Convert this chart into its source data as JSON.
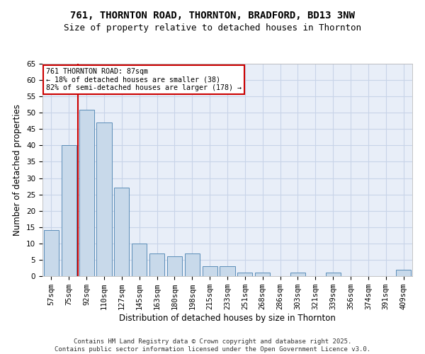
{
  "title1": "761, THORNTON ROAD, THORNTON, BRADFORD, BD13 3NW",
  "title2": "Size of property relative to detached houses in Thornton",
  "xlabel": "Distribution of detached houses by size in Thornton",
  "ylabel": "Number of detached properties",
  "categories": [
    "57sqm",
    "75sqm",
    "92sqm",
    "110sqm",
    "127sqm",
    "145sqm",
    "163sqm",
    "180sqm",
    "198sqm",
    "215sqm",
    "233sqm",
    "251sqm",
    "268sqm",
    "286sqm",
    "303sqm",
    "321sqm",
    "339sqm",
    "356sqm",
    "374sqm",
    "391sqm",
    "409sqm"
  ],
  "values": [
    14,
    40,
    51,
    47,
    27,
    10,
    7,
    6,
    7,
    3,
    3,
    1,
    1,
    0,
    1,
    0,
    1,
    0,
    0,
    0,
    2
  ],
  "bar_color": "#c8d9ea",
  "bar_edge_color": "#5b8db8",
  "vline_color": "#cc0000",
  "vline_x": 2.0,
  "annotation_text": "761 THORNTON ROAD: 87sqm\n← 18% of detached houses are smaller (38)\n82% of semi-detached houses are larger (178) →",
  "annotation_box_color": "#ffffff",
  "annotation_box_edge": "#cc0000",
  "grid_color": "#c8d4e8",
  "background_color": "#e8eef8",
  "ylim": [
    0,
    65
  ],
  "yticks": [
    0,
    5,
    10,
    15,
    20,
    25,
    30,
    35,
    40,
    45,
    50,
    55,
    60,
    65
  ],
  "footer": "Contains HM Land Registry data © Crown copyright and database right 2025.\nContains public sector information licensed under the Open Government Licence v3.0.",
  "title1_fontsize": 10,
  "title2_fontsize": 9,
  "xlabel_fontsize": 8.5,
  "ylabel_fontsize": 8.5,
  "tick_fontsize": 7.5,
  "footer_fontsize": 6.5
}
